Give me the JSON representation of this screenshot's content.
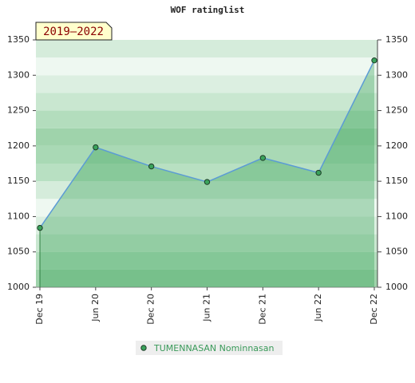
{
  "chart_data": {
    "type": "line",
    "title": "WOF ratinglist",
    "annotation": "2019–2022",
    "categories": [
      "Dec 19",
      "Jun 20",
      "Dec 20",
      "Jun 21",
      "Dec 21",
      "Jun 22",
      "Dec 22"
    ],
    "series": [
      {
        "name": "TUMENNASAN Nominnasan",
        "color": "#5b9bd5",
        "marker_color": "#3aa35c",
        "values": [
          1084,
          1198,
          1171,
          1149,
          1183,
          1162,
          1321
        ]
      }
    ],
    "ylim": [
      1000,
      1350
    ],
    "yticks": [
      1000,
      1050,
      1100,
      1150,
      1200,
      1250,
      1300,
      1350
    ],
    "y2lim": [
      1000,
      1350
    ],
    "y2ticks": [
      1000,
      1050,
      1100,
      1150,
      1200,
      1250,
      1300,
      1350
    ],
    "legend": "bottom"
  }
}
